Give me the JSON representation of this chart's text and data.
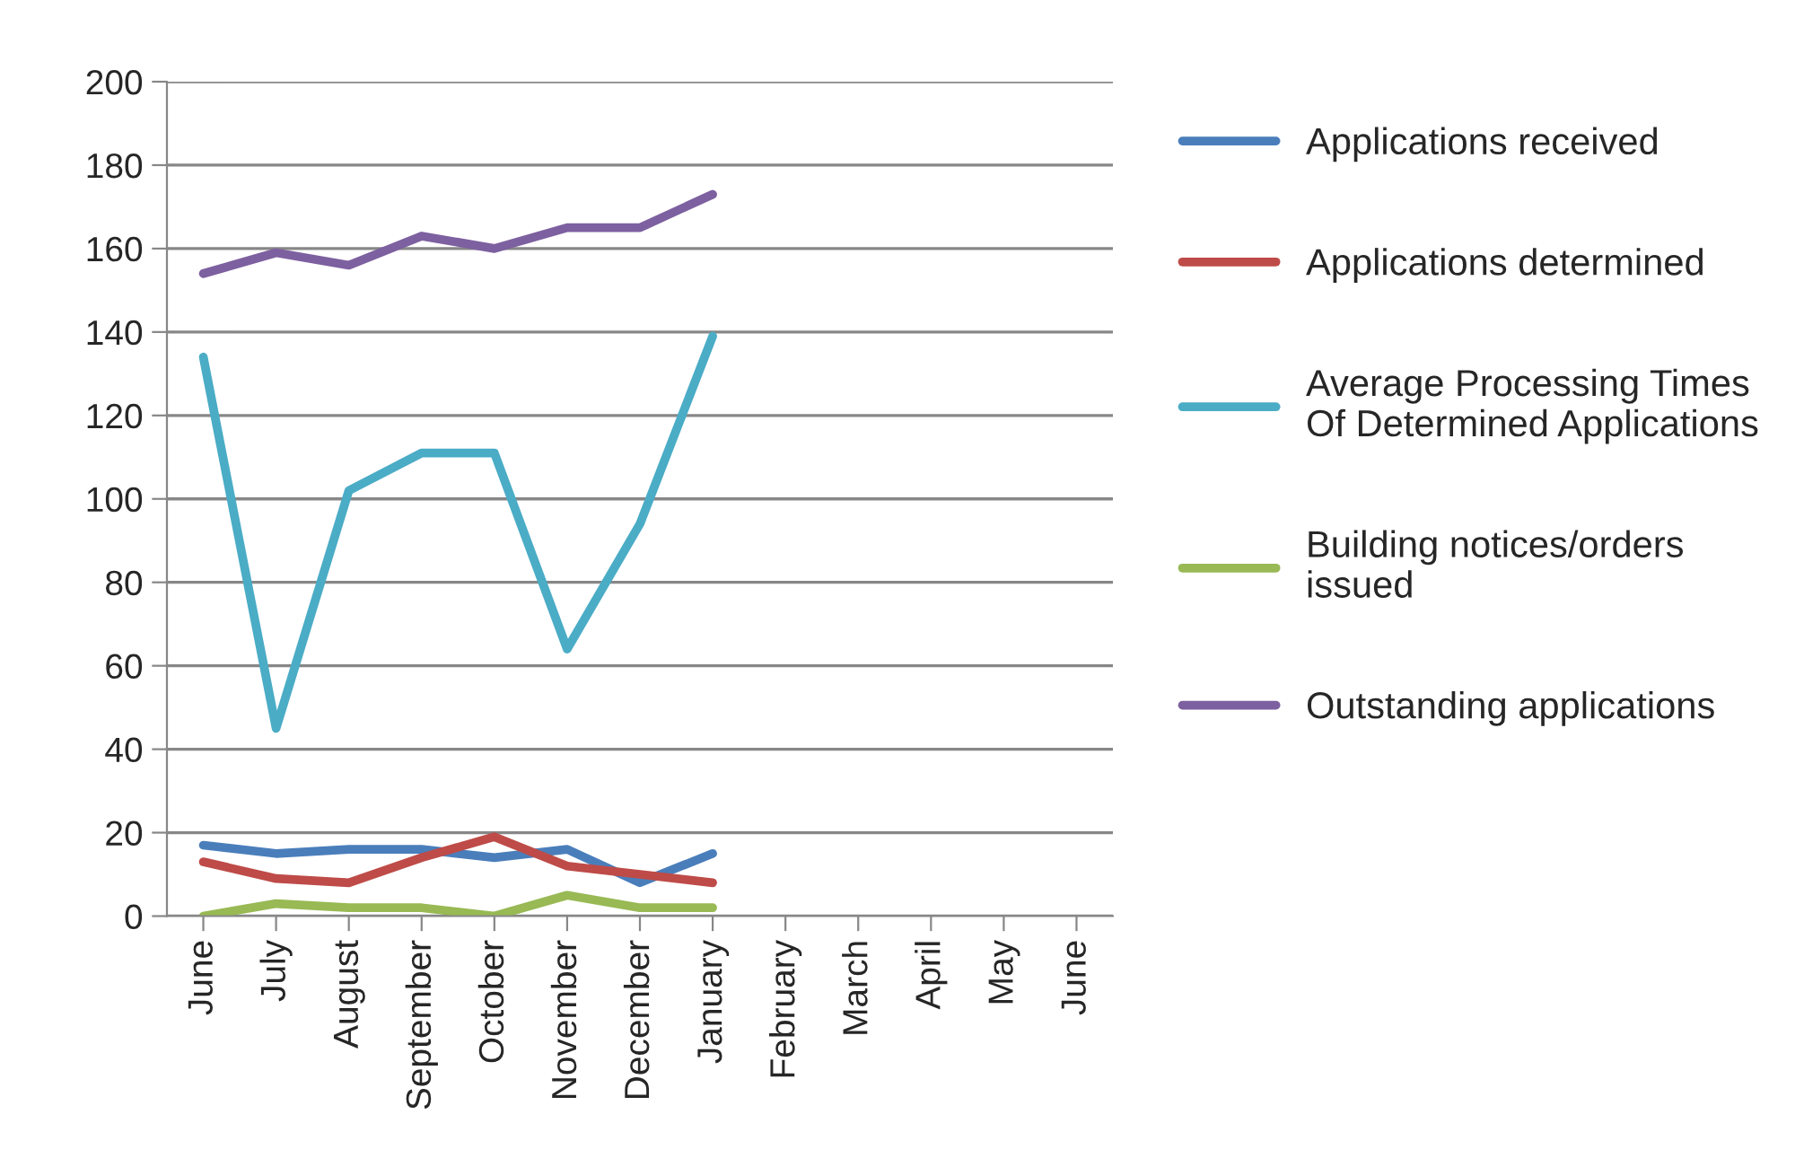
{
  "chart_data": {
    "type": "line",
    "categories": [
      "June",
      "July",
      "August",
      "September",
      "October",
      "November",
      "December",
      "January",
      "February",
      "March",
      "April",
      "May",
      "June"
    ],
    "series": [
      {
        "name": "Applications received",
        "color": "#4a7ebb",
        "values": [
          17,
          15,
          16,
          16,
          14,
          16,
          8,
          15,
          null,
          null,
          null,
          null,
          null
        ]
      },
      {
        "name": "Applications determined",
        "color": "#be4b48",
        "values": [
          13,
          9,
          8,
          14,
          19,
          12,
          10,
          8,
          null,
          null,
          null,
          null,
          null
        ]
      },
      {
        "name": "Average Processing Times Of Determined Applications",
        "color": "#4bacc6",
        "values": [
          134,
          45,
          102,
          111,
          111,
          64,
          94,
          139,
          null,
          null,
          null,
          null,
          null
        ]
      },
      {
        "name": "Building notices/orders issued",
        "color": "#98b954",
        "values": [
          0,
          3,
          2,
          2,
          0,
          5,
          2,
          2,
          null,
          null,
          null,
          null,
          null
        ]
      },
      {
        "name": "Outstanding applications",
        "color": "#7d60a0",
        "values": [
          154,
          159,
          156,
          163,
          160,
          165,
          165,
          173,
          null,
          null,
          null,
          null,
          null
        ]
      }
    ],
    "ylim": [
      0,
      200
    ],
    "yticks": [
      0,
      20,
      40,
      60,
      80,
      100,
      120,
      140,
      160,
      180,
      200
    ],
    "grid": "y",
    "legend": "right",
    "marker": "none",
    "line_style": "solid"
  }
}
